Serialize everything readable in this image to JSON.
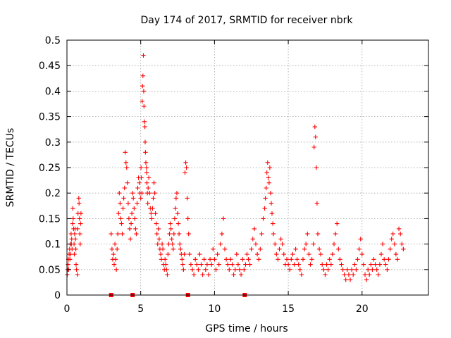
{
  "chart_data": {
    "type": "scatter",
    "title": "Day 174 of 2017, SRMTID for receiver nbrk",
    "xlabel": "GPS time / hours",
    "ylabel": "SRMTID / TECUs",
    "xlim": [
      0,
      24.5
    ],
    "ylim": [
      0,
      0.5
    ],
    "xticks": [
      0,
      5,
      10,
      15,
      20
    ],
    "xtick_labels": [
      "0",
      "5",
      "10",
      "15",
      "20"
    ],
    "yticks": [
      0,
      0.05,
      0.1,
      0.15,
      0.2,
      0.25,
      0.3,
      0.35,
      0.4,
      0.45,
      0.5
    ],
    "ytick_labels": [
      "0",
      "0.05",
      "0.1",
      "0.15",
      "0.2",
      "0.25",
      "0.3",
      "0.35",
      "0.4",
      "0.45",
      "0.5"
    ],
    "grid": true,
    "marker": "+",
    "color": "#ff0000",
    "series": [
      {
        "name": "SRMTID",
        "x": [
          0.02,
          0.05,
          0.08,
          0.1,
          0.12,
          0.15,
          0.18,
          0.2,
          0.22,
          0.25,
          0.28,
          0.3,
          0.32,
          0.35,
          0.38,
          0.4,
          0.42,
          0.45,
          0.48,
          0.5,
          0.52,
          0.55,
          0.58,
          0.6,
          0.62,
          0.65,
          0.7,
          0.72,
          0.75,
          0.8,
          0.82,
          0.85,
          0.88,
          0.9,
          0.92,
          0.95,
          3.0,
          3.05,
          3.1,
          3.15,
          3.2,
          3.25,
          3.3,
          3.35,
          3.4,
          3.45,
          3.5,
          3.55,
          3.6,
          3.65,
          3.7,
          3.75,
          3.8,
          3.85,
          3.9,
          3.95,
          4.0,
          4.05,
          4.1,
          4.15,
          4.2,
          4.25,
          4.3,
          4.35,
          4.4,
          4.45,
          4.5,
          4.55,
          4.6,
          4.65,
          4.7,
          4.75,
          4.8,
          4.85,
          4.9,
          4.95,
          5.0,
          5.02,
          5.05,
          5.08,
          5.1,
          5.12,
          5.15,
          5.18,
          5.2,
          5.22,
          5.25,
          5.28,
          5.3,
          5.32,
          5.35,
          5.38,
          5.4,
          5.42,
          5.45,
          5.48,
          5.5,
          5.55,
          5.6,
          5.65,
          5.7,
          5.75,
          5.8,
          5.85,
          5.9,
          5.95,
          6.0,
          6.05,
          6.1,
          6.15,
          6.2,
          6.25,
          6.3,
          6.35,
          6.4,
          6.45,
          6.5,
          6.55,
          6.6,
          6.65,
          6.7,
          6.75,
          6.8,
          6.85,
          6.9,
          6.95,
          7.0,
          7.05,
          7.1,
          7.15,
          7.2,
          7.25,
          7.3,
          7.35,
          7.4,
          7.45,
          7.5,
          7.55,
          7.6,
          7.65,
          7.7,
          7.75,
          7.8,
          7.85,
          7.9,
          7.95,
          8.0,
          8.05,
          8.1,
          8.15,
          8.2,
          8.25,
          8.3,
          8.4,
          8.5,
          8.6,
          8.7,
          8.8,
          8.9,
          9.0,
          9.1,
          9.2,
          9.3,
          9.4,
          9.5,
          9.6,
          9.7,
          9.8,
          9.9,
          10.0,
          10.1,
          10.2,
          10.3,
          10.4,
          10.5,
          10.6,
          10.7,
          10.8,
          10.9,
          11.0,
          11.1,
          11.2,
          11.3,
          11.4,
          11.5,
          11.6,
          11.7,
          11.8,
          11.9,
          12.0,
          12.1,
          12.2,
          12.3,
          12.4,
          12.5,
          12.6,
          12.7,
          12.8,
          12.9,
          13.0,
          13.1,
          13.2,
          13.3,
          13.4,
          13.45,
          13.5,
          13.55,
          13.6,
          13.65,
          13.7,
          13.75,
          13.8,
          13.85,
          13.9,
          13.95,
          14.0,
          14.1,
          14.2,
          14.3,
          14.4,
          14.5,
          14.6,
          14.7,
          14.8,
          14.9,
          15.0,
          15.1,
          15.2,
          15.3,
          15.4,
          15.5,
          15.6,
          15.7,
          15.8,
          15.9,
          16.0,
          16.1,
          16.2,
          16.3,
          16.4,
          16.5,
          16.6,
          16.7,
          16.75,
          16.8,
          16.85,
          16.9,
          16.95,
          17.0,
          17.1,
          17.2,
          17.3,
          17.4,
          17.5,
          17.6,
          17.7,
          17.8,
          17.9,
          18.0,
          18.1,
          18.2,
          18.3,
          18.4,
          18.5,
          18.6,
          18.7,
          18.8,
          18.9,
          19.0,
          19.1,
          19.2,
          19.3,
          19.4,
          19.5,
          19.6,
          19.7,
          19.8,
          19.9,
          20.0,
          20.1,
          20.2,
          20.3,
          20.4,
          20.5,
          20.6,
          20.7,
          20.8,
          20.9,
          21.0,
          21.1,
          21.2,
          21.3,
          21.4,
          21.5,
          21.6,
          21.7,
          21.8,
          21.9,
          22.0,
          22.1,
          22.2,
          22.3,
          22.4,
          22.5,
          22.6,
          22.7,
          22.8
        ],
        "y": [
          0.04,
          0.05,
          0.06,
          0.07,
          0.05,
          0.08,
          0.09,
          0.07,
          0.1,
          0.08,
          0.12,
          0.1,
          0.11,
          0.09,
          0.14,
          0.17,
          0.15,
          0.13,
          0.1,
          0.08,
          0.12,
          0.13,
          0.11,
          0.09,
          0.06,
          0.05,
          0.04,
          0.13,
          0.16,
          0.19,
          0.18,
          0.15,
          0.12,
          0.1,
          0.14,
          0.16,
          0.12,
          0.09,
          0.07,
          0.08,
          0.06,
          0.1,
          0.07,
          0.05,
          0.09,
          0.12,
          0.16,
          0.2,
          0.18,
          0.15,
          0.14,
          0.12,
          0.17,
          0.19,
          0.21,
          0.28,
          0.26,
          0.25,
          0.22,
          0.18,
          0.15,
          0.13,
          0.11,
          0.14,
          0.16,
          0.2,
          0.19,
          0.17,
          0.15,
          0.13,
          0.12,
          0.18,
          0.21,
          0.23,
          0.22,
          0.2,
          0.19,
          0.25,
          0.23,
          0.2,
          0.38,
          0.41,
          0.43,
          0.47,
          0.4,
          0.37,
          0.34,
          0.33,
          0.3,
          0.28,
          0.26,
          0.25,
          0.24,
          0.22,
          0.2,
          0.18,
          0.21,
          0.23,
          0.2,
          0.17,
          0.16,
          0.15,
          0.17,
          0.19,
          0.22,
          0.2,
          0.16,
          0.14,
          0.12,
          0.1,
          0.13,
          0.11,
          0.09,
          0.08,
          0.07,
          0.1,
          0.09,
          0.06,
          0.05,
          0.07,
          0.06,
          0.05,
          0.04,
          0.08,
          0.1,
          0.12,
          0.14,
          0.13,
          0.11,
          0.1,
          0.09,
          0.12,
          0.15,
          0.17,
          0.19,
          0.2,
          0.16,
          0.14,
          0.12,
          0.1,
          0.09,
          0.08,
          0.07,
          0.06,
          0.05,
          0.08,
          0.24,
          0.26,
          0.25,
          0.19,
          0.15,
          0.12,
          0.08,
          0.06,
          0.05,
          0.04,
          0.07,
          0.06,
          0.05,
          0.08,
          0.06,
          0.04,
          0.07,
          0.05,
          0.06,
          0.04,
          0.07,
          0.06,
          0.09,
          0.07,
          0.05,
          0.08,
          0.06,
          0.1,
          0.12,
          0.15,
          0.09,
          0.07,
          0.06,
          0.05,
          0.07,
          0.06,
          0.04,
          0.05,
          0.08,
          0.06,
          0.05,
          0.04,
          0.07,
          0.05,
          0.06,
          0.08,
          0.07,
          0.06,
          0.09,
          0.11,
          0.13,
          0.1,
          0.08,
          0.07,
          0.09,
          0.12,
          0.15,
          0.17,
          0.19,
          0.21,
          0.24,
          0.26,
          0.23,
          0.22,
          0.25,
          0.2,
          0.18,
          0.16,
          0.14,
          0.12,
          0.1,
          0.08,
          0.07,
          0.09,
          0.11,
          0.1,
          0.08,
          0.06,
          0.07,
          0.06,
          0.05,
          0.07,
          0.08,
          0.06,
          0.09,
          0.07,
          0.06,
          0.05,
          0.04,
          0.07,
          0.09,
          0.1,
          0.12,
          0.08,
          0.06,
          0.07,
          0.1,
          0.29,
          0.33,
          0.31,
          0.25,
          0.18,
          0.12,
          0.09,
          0.08,
          0.06,
          0.05,
          0.04,
          0.06,
          0.05,
          0.07,
          0.06,
          0.08,
          0.1,
          0.12,
          0.14,
          0.09,
          0.07,
          0.06,
          0.05,
          0.04,
          0.03,
          0.05,
          0.04,
          0.03,
          0.05,
          0.04,
          0.06,
          0.05,
          0.07,
          0.09,
          0.11,
          0.08,
          0.06,
          0.04,
          0.03,
          0.05,
          0.04,
          0.06,
          0.05,
          0.07,
          0.06,
          0.05,
          0.04,
          0.06,
          0.08,
          0.1,
          0.07,
          0.06,
          0.05,
          0.07,
          0.09,
          0.11,
          0.12,
          0.1,
          0.08,
          0.07,
          0.13,
          0.12,
          0.1,
          0.09
        ]
      },
      {
        "name": "baseline-markers",
        "x": [
          3.0,
          4.45,
          8.2,
          12.05
        ],
        "y": [
          0,
          0,
          0,
          0
        ]
      }
    ]
  }
}
